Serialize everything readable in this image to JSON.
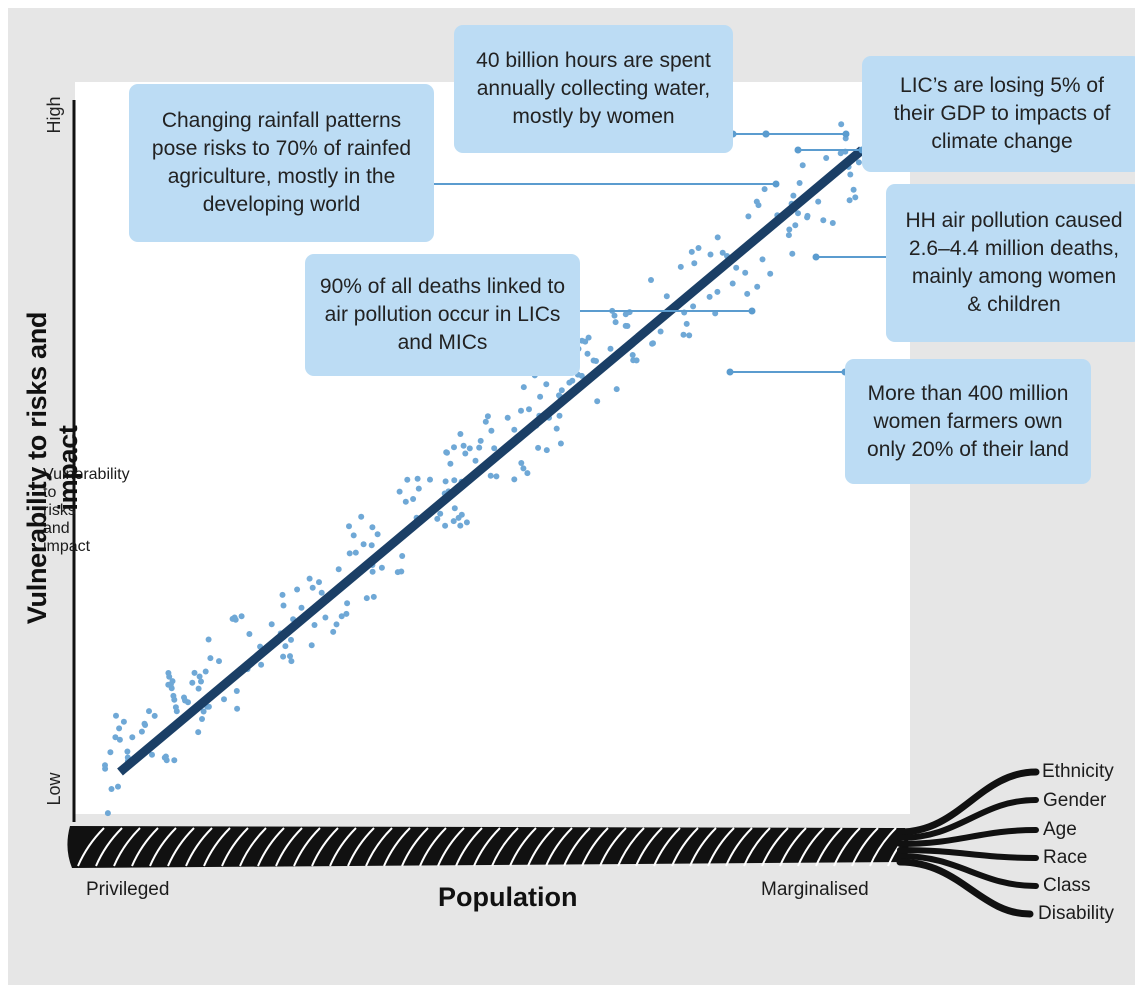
{
  "y_axis": {
    "title": "Vulnerability to risks and impact",
    "high_label": "High",
    "low_label": "Low"
  },
  "x_axis": {
    "title": "Population",
    "left_label": "Privileged",
    "right_label": "Marginalised"
  },
  "rope_threads": [
    "Ethnicity",
    "Gender",
    "Age",
    "Race",
    "Class",
    "Disability"
  ],
  "callouts": [
    {
      "id": "rainfall",
      "text": "Changing rainfall patterns pose risks to 70% of rainfed agriculture, mostly in the developing world"
    },
    {
      "id": "water",
      "text": "40 billion hours are spent annually collecting water, mostly by women"
    },
    {
      "id": "gdp",
      "text": "LIC’s are losing 5% of their GDP to impacts of climate change"
    },
    {
      "id": "hh-air",
      "text": "HH air pollution caused 2.6–4.4 million deaths, mainly among women & children"
    },
    {
      "id": "air-deaths",
      "text": "90% of all deaths linked to air pollution occur in LICs and MICs"
    },
    {
      "id": "farmers",
      "text": "More than 400 million women farmers own only 20% of their land"
    }
  ],
  "colors": {
    "trend_line": "#1b3f66",
    "scatter_dots": "#6fa8d6",
    "callout_fill": "#bcdcf4",
    "leader_line": "#5b9ccf",
    "rope": "#111111",
    "background_frame": "#e6e6e6"
  }
}
